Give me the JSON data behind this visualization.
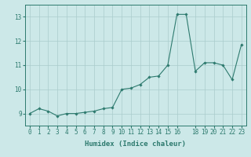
{
  "x": [
    0,
    1,
    2,
    3,
    4,
    5,
    6,
    7,
    8,
    9,
    10,
    11,
    12,
    13,
    14,
    15,
    16,
    17,
    18,
    19,
    20,
    21,
    22,
    23
  ],
  "y": [
    9.0,
    9.2,
    9.1,
    8.9,
    9.0,
    9.0,
    9.05,
    9.1,
    9.2,
    9.25,
    10.0,
    10.05,
    10.2,
    10.5,
    10.55,
    11.0,
    13.1,
    13.1,
    10.75,
    11.1,
    11.1,
    11.0,
    10.4,
    11.85
  ],
  "line_color": "#2d7a6e",
  "marker": "D",
  "marker_size": 1.8,
  "bg_color": "#cce8e8",
  "grid_color": "#aacccc",
  "xlabel": "Humidex (Indice chaleur)",
  "xlim": [
    -0.5,
    23.5
  ],
  "ylim": [
    8.5,
    13.5
  ],
  "yticks": [
    9,
    10,
    11,
    12,
    13
  ],
  "xticks": [
    0,
    1,
    2,
    3,
    4,
    5,
    6,
    7,
    8,
    9,
    10,
    11,
    12,
    13,
    14,
    15,
    16,
    18,
    19,
    20,
    21,
    22,
    23
  ],
  "xtick_labels": [
    "0",
    "1",
    "2",
    "3",
    "4",
    "5",
    "6",
    "7",
    "8",
    "9",
    "10",
    "11",
    "12",
    "13",
    "14",
    "15",
    "16",
    "18",
    "19",
    "20",
    "21",
    "22",
    "23"
  ],
  "tick_fontsize": 5.5,
  "xlabel_fontsize": 6.5
}
